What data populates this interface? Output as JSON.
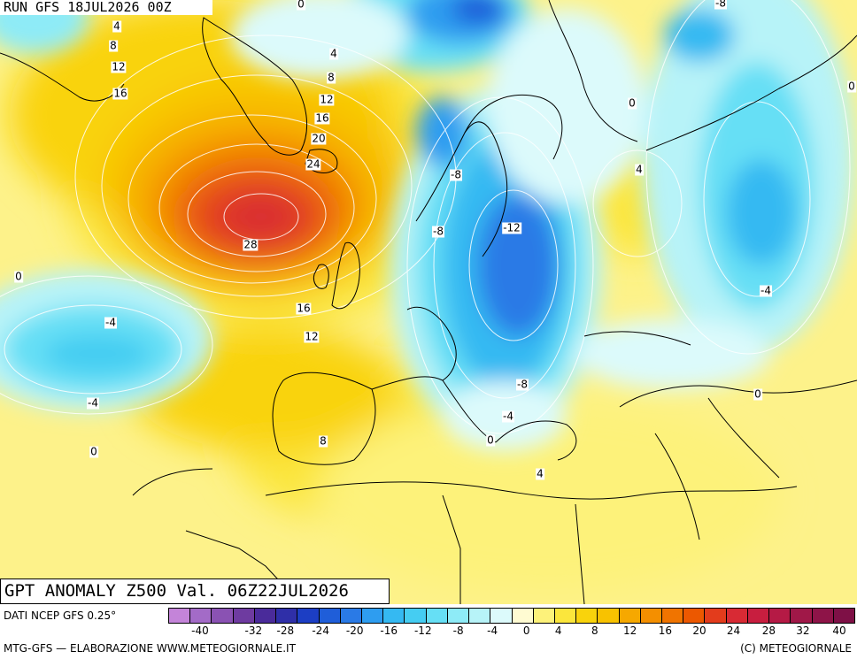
{
  "header": {
    "run_label": "RUN GFS 18JUL2026 00Z"
  },
  "map": {
    "title": "GPT ANOMALY Z500 Val. 06Z22JUL2026",
    "colors": {
      "background": "#fdf28a",
      "land_line": "#000000",
      "contour_line": "#ffffff"
    },
    "contour_labels": [
      {
        "text": "4"
      },
      {
        "text": "8"
      },
      {
        "text": "12"
      },
      {
        "text": "16"
      },
      {
        "text": "4"
      },
      {
        "text": "8"
      },
      {
        "text": "12"
      },
      {
        "text": "16"
      },
      {
        "text": "20"
      },
      {
        "text": "24"
      },
      {
        "text": "28"
      },
      {
        "text": "16"
      },
      {
        "text": "12"
      },
      {
        "text": "8"
      },
      {
        "text": "0"
      },
      {
        "text": "-4"
      },
      {
        "text": "-4"
      },
      {
        "text": "0"
      },
      {
        "text": "0"
      },
      {
        "text": "-8"
      },
      {
        "text": "-8"
      },
      {
        "text": "-12"
      },
      {
        "text": "-8"
      },
      {
        "text": "-4"
      },
      {
        "text": "0"
      },
      {
        "text": "4"
      },
      {
        "text": "0"
      },
      {
        "text": "4"
      },
      {
        "text": "-8"
      },
      {
        "text": "-4"
      },
      {
        "text": "0"
      },
      {
        "text": "0"
      }
    ]
  },
  "footer": {
    "source": "DATI NCEP GFS 0.25°",
    "credit_left": "MTG-GFS — ELABORAZIONE WWW.METEOGIORNALE.IT",
    "credit_right": "(C) METEOGIORNALE"
  },
  "legend": {
    "ticks": [
      "-40",
      "-32",
      "-28",
      "-24",
      "-20",
      "-16",
      "-12",
      "-8",
      "-4",
      "0",
      "4",
      "8",
      "12",
      "16",
      "20",
      "24",
      "28",
      "32",
      "40"
    ],
    "colors": [
      "#c484d9",
      "#a36bc7",
      "#8a52b3",
      "#6e3ba0",
      "#4a2b9a",
      "#2f2fa8",
      "#1c3ec4",
      "#1f5ed9",
      "#2a7ae6",
      "#2e9df0",
      "#35b9f2",
      "#45cdf2",
      "#66dff5",
      "#8eebf7",
      "#b7f3f8",
      "#dcfafb",
      "#fffbd2",
      "#fdf27a",
      "#fbe63c",
      "#f9d30c",
      "#f8c200",
      "#f6a800",
      "#f48f00",
      "#f07400",
      "#ec5800",
      "#e33c1c",
      "#d82a34",
      "#c81e3f",
      "#b51a45",
      "#a01848",
      "#8e1448",
      "#7e1046"
    ]
  }
}
